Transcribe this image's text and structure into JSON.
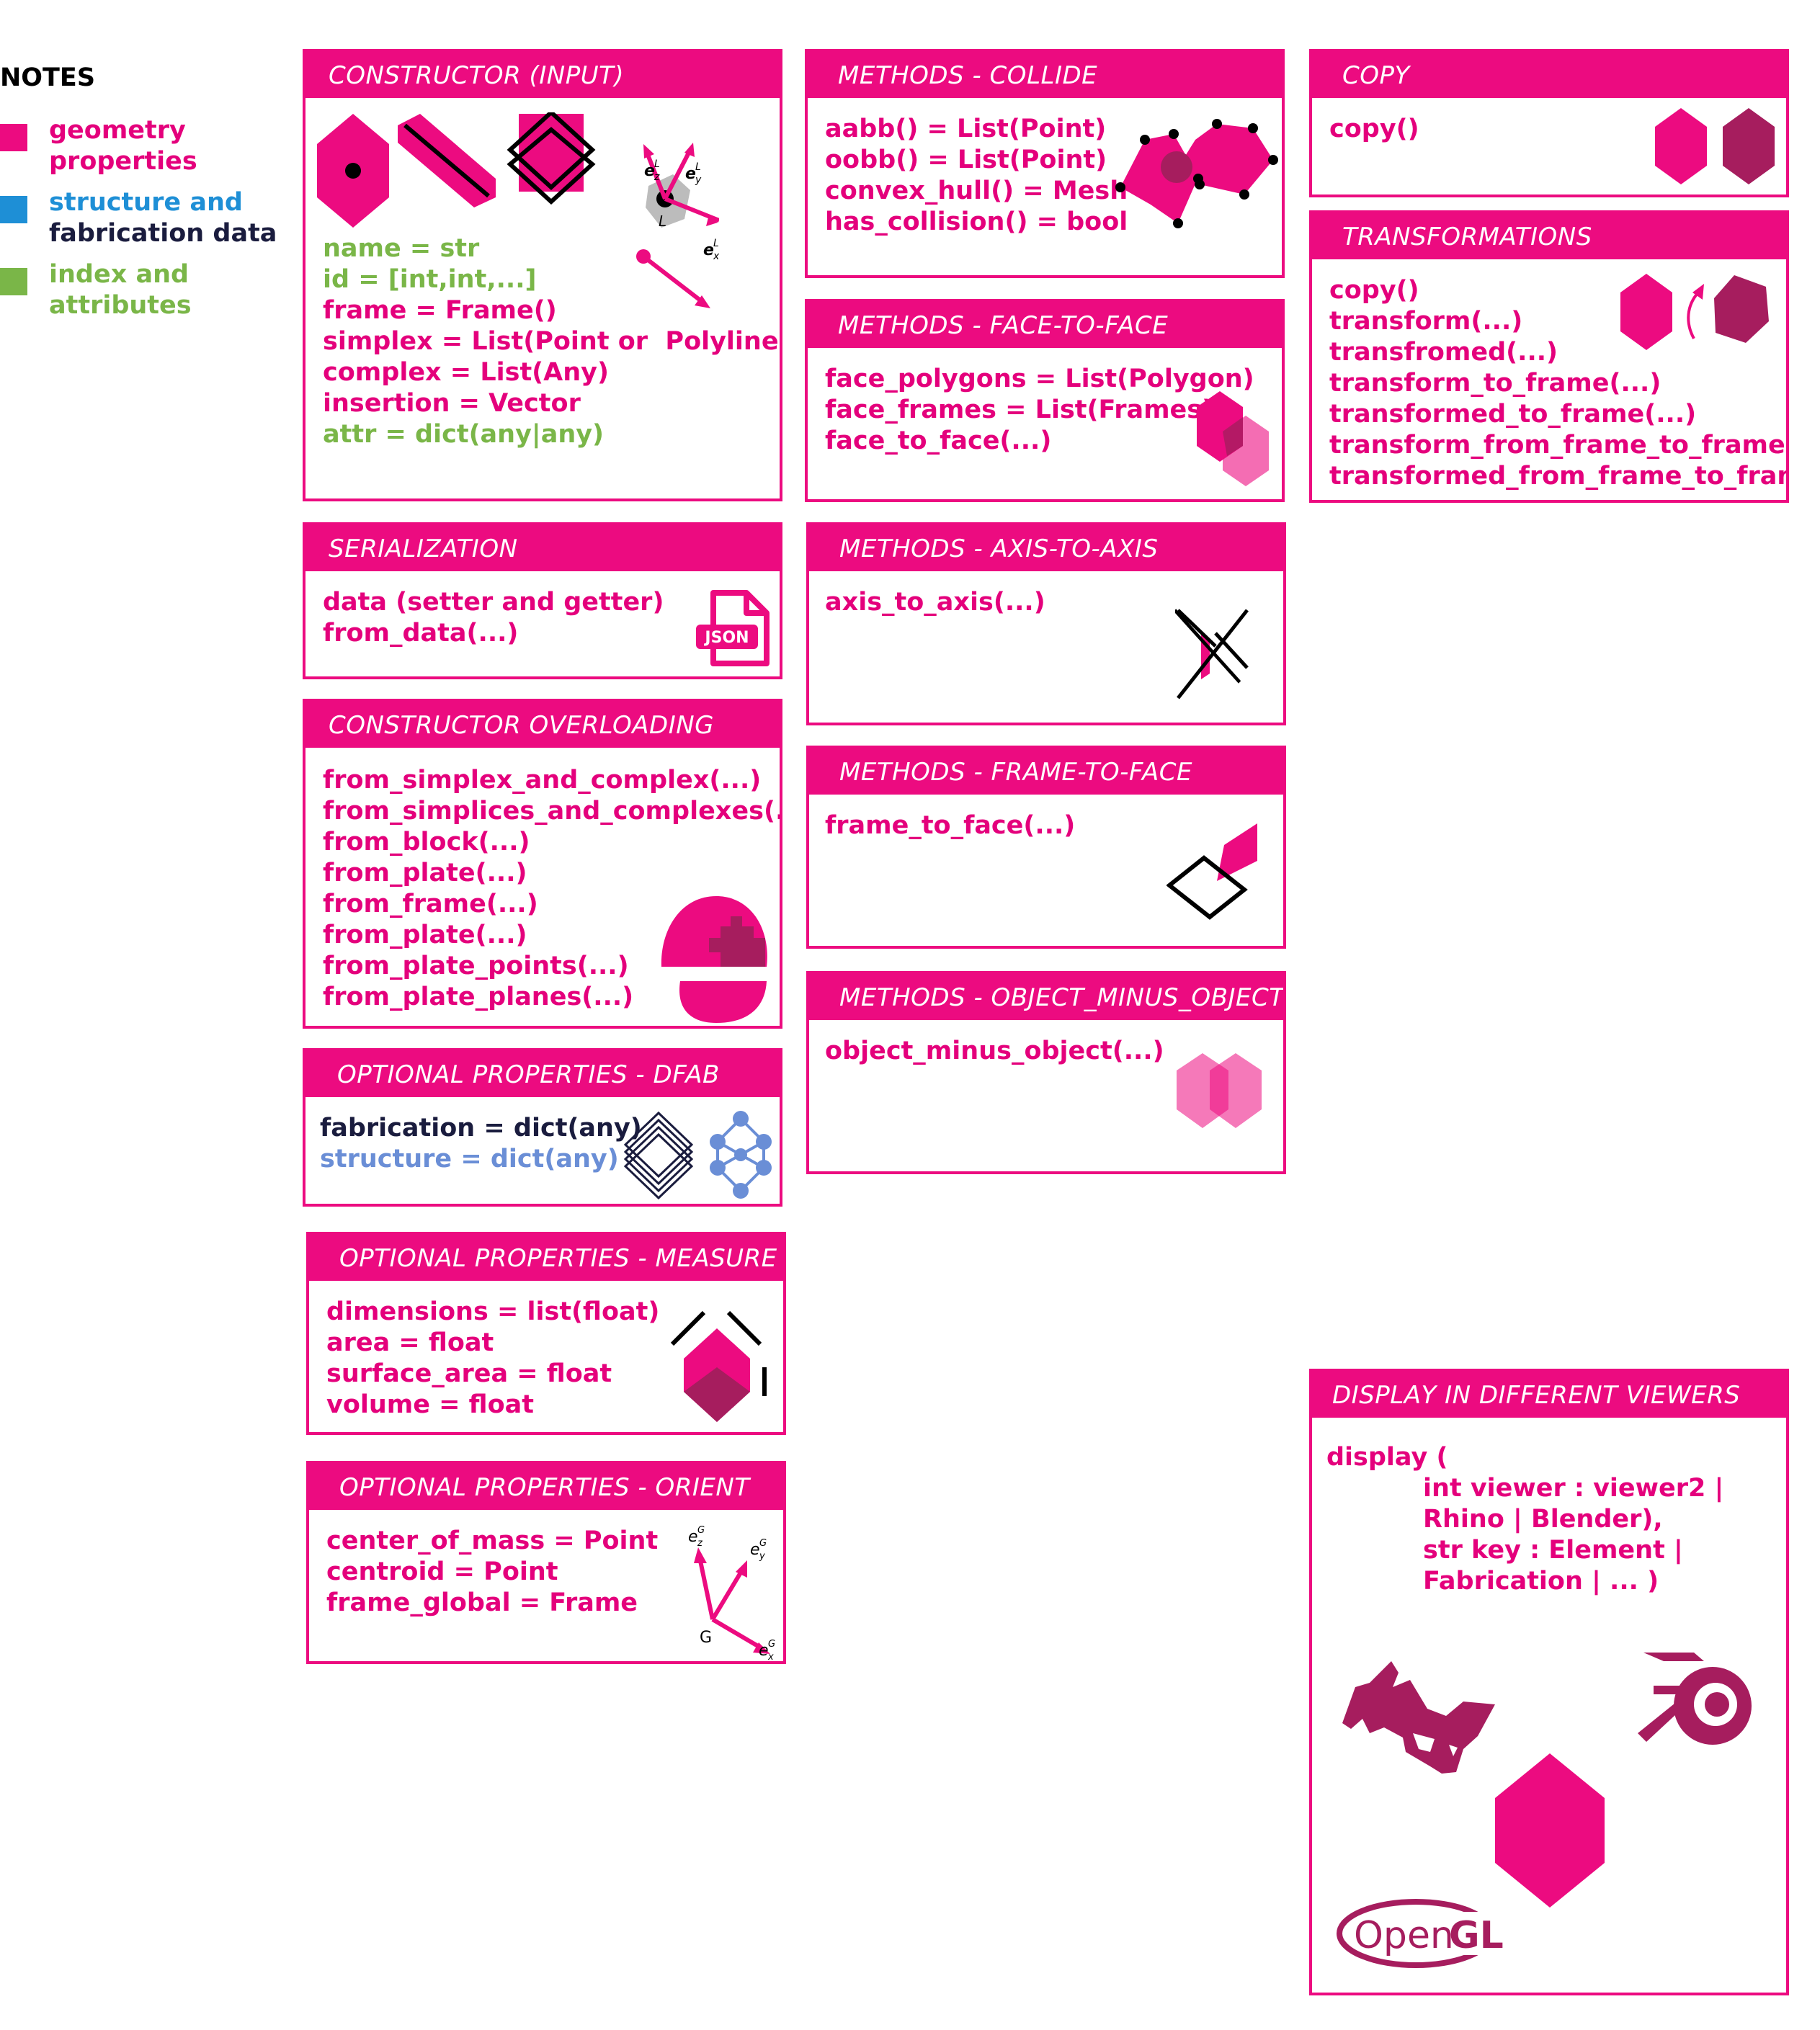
{
  "notes": {
    "title": "NOTES",
    "legend": [
      {
        "lines": [
          "geometry",
          "properties"
        ],
        "colors": [
          "#e4007c",
          "#e4007c"
        ],
        "swatch": "#ec0b80"
      },
      {
        "lines": [
          "structure and",
          "fabrication data"
        ],
        "colors": [
          "#1e8fd6",
          "#1a1c3e"
        ],
        "swatch": "#1e8fd6"
      },
      {
        "lines": [
          "index and",
          "attributes"
        ],
        "colors": [
          "#7ab648",
          "#7ab648"
        ],
        "swatch": "#7ab648"
      }
    ]
  },
  "constructor": {
    "title": "CONSTRUCTOR (INPUT)",
    "lines": [
      "name = str",
      "id = [int,int,...]",
      "frame = Frame()",
      "simplex = List(Point or  Polyline)",
      "complex = List(Any)",
      "insertion = Vector",
      "attr = dict(any|any)"
    ],
    "axes": {
      "z": "e",
      "y": "e",
      "x": "e",
      "sup": "L",
      "z_sub": "z",
      "y_sub": "y",
      "x_sub": "x",
      "origin": "L"
    }
  },
  "serialization": {
    "title": "SERIALIZATION",
    "lines": [
      "data (setter and getter)",
      "from_data(...)"
    ],
    "icon_label": "JSON"
  },
  "overloading": {
    "title": "CONSTRUCTOR OVERLOADING",
    "lines": [
      "from_simplex_and_complex(...)",
      "from_simplices_and_complexes(...)",
      "from_block(...)",
      "from_plate(...)",
      "from_frame(...)",
      "from_plate(...)",
      "from_plate_points(...)",
      "from_plate_planes(...)"
    ]
  },
  "dfab": {
    "title": "OPTIONAL PROPERTIES - DFAB",
    "lines": [
      "fabrication = dict(any)",
      "structure = dict(any)"
    ]
  },
  "measure": {
    "title": "OPTIONAL PROPERTIES - MEASURE",
    "lines": [
      "dimensions = list(float)",
      "area = float",
      "surface_area = float",
      "volume = float"
    ]
  },
  "orient": {
    "title": "OPTIONAL PROPERTIES - ORIENT",
    "lines": [
      "center_of_mass = Point",
      "centroid = Point",
      "frame_global = Frame"
    ],
    "axes": {
      "e": "e",
      "sup": "G",
      "z_sub": "z",
      "y_sub": "y",
      "x_sub": "x",
      "origin": "G"
    }
  },
  "collide": {
    "title": "METHODS - COLLIDE",
    "lines": [
      "aabb() = List(Point)",
      "oobb() = List(Point)",
      "convex_hull() = Mesh",
      "has_collision() = bool"
    ]
  },
  "face": {
    "title": "METHODS - FACE-TO-FACE",
    "lines": [
      "face_polygons = List(Polygon)",
      "face_frames = List(Frames)",
      "face_to_face(...)"
    ]
  },
  "axis": {
    "title": "METHODS - AXIS-TO-AXIS",
    "lines": [
      "axis_to_axis(...)"
    ]
  },
  "frameface": {
    "title": "METHODS - FRAME-TO-FACE",
    "lines": [
      "frame_to_face(...)"
    ]
  },
  "minus": {
    "title": "METHODS - OBJECT_MINUS_OBJECT",
    "lines": [
      "object_minus_object(...)"
    ]
  },
  "copy": {
    "title": "COPY",
    "lines": [
      "copy()"
    ]
  },
  "transformations": {
    "title": "TRANSFORMATIONS",
    "lines": [
      "copy()",
      "transform(...)",
      "transfromed(...)",
      "transform_to_frame(...)",
      "transformed_to_frame(...)",
      "transform_from_frame_to_frame(..)",
      "transformed_from_frame_to_frame"
    ]
  },
  "display": {
    "title": "DISPLAY IN DIFFERENT VIEWERS",
    "lines": [
      "display (",
      "           int viewer : viewer2 |",
      "           Rhino | Blender),",
      "           str key : Element |",
      "           Fabrication | ... )"
    ],
    "logo_opengl": {
      "main": "Open",
      "accent": "GL"
    }
  },
  "colors": {
    "magenta": "#ec0b80",
    "dark_magenta": "#a61d5e",
    "green": "#7ab648",
    "blue": "#1e8fd6",
    "navy": "#1a1c3e",
    "light_blue": "#6a8ed6"
  }
}
